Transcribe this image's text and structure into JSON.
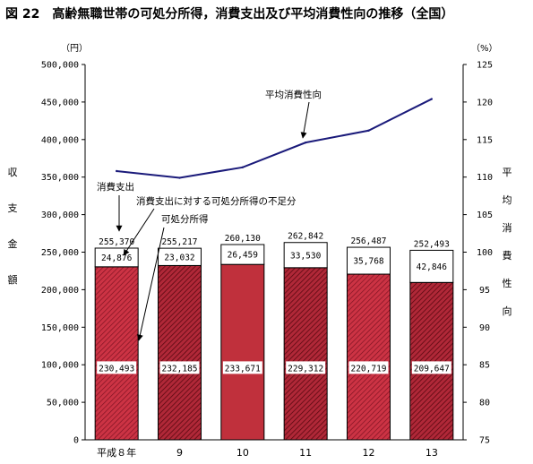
{
  "chart_data": {
    "type": "bar",
    "title": "図 22　高齢無職世帯の可処分所得，消費支出及び平均消費性向の推移（全国）",
    "categories": [
      "平成８年",
      "9",
      "10",
      "11",
      "12",
      "13"
    ],
    "y_left": {
      "unit": "（円）",
      "label": [
        "収",
        "支",
        "金",
        "額"
      ],
      "range": [
        0,
        500000
      ],
      "ticks": [
        "0",
        "50,000",
        "100,000",
        "150,000",
        "200,000",
        "250,000",
        "300,000",
        "350,000",
        "400,000",
        "450,000",
        "500,000"
      ]
    },
    "y_right": {
      "unit": "（%）",
      "label": [
        "平",
        "均",
        "消",
        "費",
        "性",
        "向"
      ],
      "range": [
        75,
        125
      ],
      "ticks": [
        "75",
        "80",
        "85",
        "90",
        "95",
        "100",
        "105",
        "110",
        "115",
        "120",
        "125"
      ]
    },
    "series": [
      {
        "name": "可処分所得",
        "values": [
          230493,
          232185,
          233671,
          229312,
          220719,
          209647
        ],
        "labels": [
          "230,493",
          "232,185",
          "233,671",
          "229,312",
          "220,719",
          "209,647"
        ],
        "color": "#c0303c"
      },
      {
        "name": "消費支出に対する可処分所得の不足分",
        "values": [
          24876,
          23032,
          26459,
          33530,
          35768,
          42846
        ],
        "labels": [
          "24,876",
          "23,032",
          "26,459",
          "33,530",
          "35,768",
          "42,846"
        ],
        "color": "#ffffff"
      },
      {
        "name": "消費支出",
        "values": [
          255370,
          255217,
          260130,
          262842,
          256487,
          252493
        ],
        "labels": [
          "255,370",
          "255,217",
          "260,130",
          "262,842",
          "256,487",
          "252,493"
        ]
      },
      {
        "name": "平均消費性向",
        "axis": "right",
        "values": [
          110.8,
          109.9,
          111.3,
          114.6,
          116.2,
          120.4
        ],
        "color": "#1a1a7a"
      }
    ],
    "grid": false
  }
}
